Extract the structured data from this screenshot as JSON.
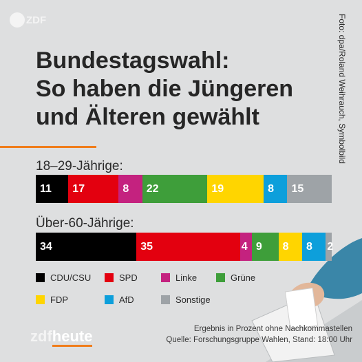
{
  "brand": {
    "logo_top": "ZDF",
    "logo_bottom_a": "zdf",
    "logo_bottom_b": "heute"
  },
  "title": "Bundestagswahl:\nSo haben die Jüngeren\nund Älteren gewählt",
  "credit": "Foto: dpa/Roland Weihrauch, Symbolbild",
  "chart_data": {
    "type": "bar",
    "subtype": "stacked-horizontal-100",
    "groups": [
      {
        "label": "18–29-Jährige:",
        "values": [
          11,
          17,
          8,
          22,
          19,
          8,
          15
        ]
      },
      {
        "label": "Über-60-Jährige:",
        "values": [
          34,
          35,
          4,
          9,
          8,
          8,
          2
        ]
      }
    ],
    "series": [
      {
        "name": "CDU/CSU",
        "color": "#000000"
      },
      {
        "name": "SPD",
        "color": "#e3000f"
      },
      {
        "name": "Linke",
        "color": "#c4227f"
      },
      {
        "name": "Grüne",
        "color": "#3e9e3a"
      },
      {
        "name": "FDP",
        "color": "#ffd500"
      },
      {
        "name": "AfD",
        "color": "#0d9fdb"
      },
      {
        "name": "Sonstige",
        "color": "#9ea3a7"
      }
    ],
    "legend_position": "bottom-left"
  },
  "footer": {
    "line1": "Ergebnis in Prozent ohne Nachkommastellen",
    "line2": "Quelle: Forschungsgruppe Wahlen, Stand: 18:00 Uhr"
  }
}
